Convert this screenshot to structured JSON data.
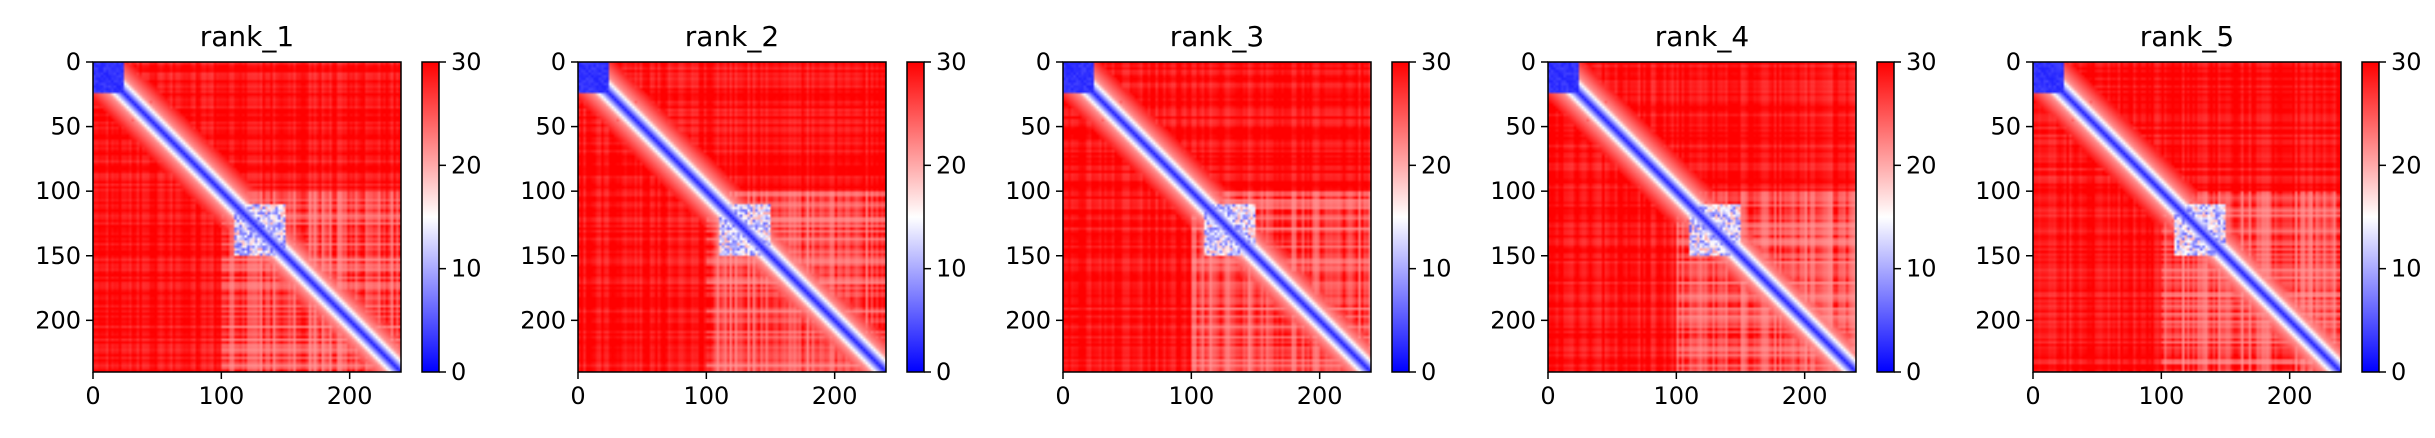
{
  "figure": {
    "panel_count": 5
  },
  "chart_data": [
    {
      "type": "heatmap",
      "title": "rank_1",
      "matrix_size": 240,
      "xlim": [
        0,
        240
      ],
      "ylim": [
        240,
        0
      ],
      "x_ticks": [
        0,
        100,
        200
      ],
      "y_ticks": [
        0,
        50,
        100,
        150,
        200
      ],
      "colorbar": {
        "min": 0,
        "max": 30,
        "ticks": [
          0,
          10,
          20,
          30
        ],
        "colormap": "bwr",
        "colors": [
          "#0000ff",
          "#ffffff",
          "#ff0000"
        ]
      },
      "features": {
        "diagonal_band": true,
        "blue_block": [
          0,
          25
        ],
        "blue_cluster": [
          110,
          150
        ],
        "light_region_rows": [
          110,
          240
        ],
        "light_region_cols": [
          100,
          240
        ]
      }
    },
    {
      "type": "heatmap",
      "title": "rank_2",
      "matrix_size": 240,
      "xlim": [
        0,
        240
      ],
      "ylim": [
        240,
        0
      ],
      "x_ticks": [
        0,
        100,
        200
      ],
      "y_ticks": [
        0,
        50,
        100,
        150,
        200
      ],
      "colorbar": {
        "min": 0,
        "max": 30,
        "ticks": [
          0,
          10,
          20,
          30
        ],
        "colormap": "bwr",
        "colors": [
          "#0000ff",
          "#ffffff",
          "#ff0000"
        ]
      },
      "features": {
        "diagonal_band": true,
        "blue_block": [
          0,
          25
        ],
        "blue_cluster": [
          110,
          150
        ],
        "light_region_rows": [
          110,
          240
        ],
        "light_region_cols": [
          100,
          240
        ]
      }
    },
    {
      "type": "heatmap",
      "title": "rank_3",
      "matrix_size": 240,
      "xlim": [
        0,
        240
      ],
      "ylim": [
        240,
        0
      ],
      "x_ticks": [
        0,
        100,
        200
      ],
      "y_ticks": [
        0,
        50,
        100,
        150,
        200
      ],
      "colorbar": {
        "min": 0,
        "max": 30,
        "ticks": [
          0,
          10,
          20,
          30
        ],
        "colormap": "bwr",
        "colors": [
          "#0000ff",
          "#ffffff",
          "#ff0000"
        ]
      },
      "features": {
        "diagonal_band": true,
        "blue_block": [
          0,
          25
        ],
        "blue_cluster": [
          110,
          150
        ],
        "light_region_rows": [
          110,
          240
        ],
        "light_region_cols": [
          100,
          240
        ]
      }
    },
    {
      "type": "heatmap",
      "title": "rank_4",
      "matrix_size": 240,
      "xlim": [
        0,
        240
      ],
      "ylim": [
        240,
        0
      ],
      "x_ticks": [
        0,
        100,
        200
      ],
      "y_ticks": [
        0,
        50,
        100,
        150,
        200
      ],
      "colorbar": {
        "min": 0,
        "max": 30,
        "ticks": [
          0,
          10,
          20,
          30
        ],
        "colormap": "bwr",
        "colors": [
          "#0000ff",
          "#ffffff",
          "#ff0000"
        ]
      },
      "features": {
        "diagonal_band": true,
        "blue_block": [
          0,
          25
        ],
        "blue_cluster": [
          110,
          150
        ],
        "light_region_rows": [
          110,
          240
        ],
        "light_region_cols": [
          100,
          240
        ]
      }
    },
    {
      "type": "heatmap",
      "title": "rank_5",
      "matrix_size": 240,
      "xlim": [
        0,
        240
      ],
      "ylim": [
        240,
        0
      ],
      "x_ticks": [
        0,
        100,
        200
      ],
      "y_ticks": [
        0,
        50,
        100,
        150,
        200
      ],
      "colorbar": {
        "min": 0,
        "max": 30,
        "ticks": [
          0,
          10,
          20,
          30
        ],
        "colormap": "bwr",
        "colors": [
          "#0000ff",
          "#ffffff",
          "#ff0000"
        ]
      },
      "features": {
        "diagonal_band": true,
        "blue_block": [
          0,
          25
        ],
        "blue_cluster": [
          110,
          150
        ],
        "light_region_rows": [
          110,
          240
        ],
        "light_region_cols": [
          100,
          240
        ]
      }
    }
  ]
}
